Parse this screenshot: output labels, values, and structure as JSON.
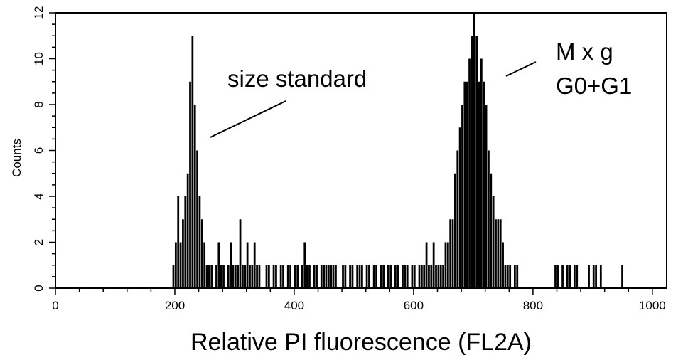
{
  "chart_data": {
    "type": "bar",
    "title": "",
    "xlabel": "Relative PI fluorescence (FL2A)",
    "ylabel": "Counts",
    "xlim": [
      0,
      1024
    ],
    "ylim": [
      0,
      12
    ],
    "grid": false,
    "x_ticks": [
      0,
      200,
      400,
      600,
      800,
      1000
    ],
    "y_ticks": [
      0,
      2,
      4,
      6,
      8,
      10,
      12
    ],
    "bar_color": "#000000",
    "bin_width": 4,
    "series": [
      {
        "x": [
          196,
          200,
          204,
          208,
          212,
          216,
          220,
          224,
          228,
          232,
          236,
          240,
          244,
          248,
          252,
          256,
          260,
          264,
          268,
          272,
          276,
          280,
          284,
          288,
          292,
          296,
          300,
          304,
          308,
          312,
          316,
          320,
          324,
          328,
          332,
          336,
          340,
          344,
          348,
          352,
          356,
          360,
          364,
          368,
          372,
          376,
          380,
          384,
          388,
          392,
          396,
          400,
          404,
          408,
          412,
          416,
          420,
          424,
          428,
          432,
          436,
          440,
          444,
          448,
          452,
          456,
          460,
          464,
          468,
          472,
          476,
          480,
          484,
          488,
          492,
          496,
          500,
          504,
          508,
          512,
          516,
          520,
          524,
          528,
          532,
          536,
          540,
          544,
          548,
          552,
          556,
          560,
          564,
          568,
          572,
          576,
          580,
          584,
          588,
          592,
          596,
          600,
          604,
          608,
          612,
          616,
          620,
          624,
          628,
          632,
          636,
          640,
          644,
          648,
          652,
          656,
          660,
          664,
          668,
          672,
          676,
          680,
          684,
          688,
          692,
          696,
          700,
          704,
          708,
          712,
          716,
          720,
          724,
          728,
          732,
          736,
          740,
          744,
          748,
          752,
          756,
          760,
          764,
          768,
          772,
          776,
          780,
          784,
          788,
          792,
          796,
          800,
          804,
          808,
          812,
          816,
          820,
          824,
          828,
          832,
          836,
          840,
          844,
          848,
          852,
          856,
          860,
          864,
          868,
          872,
          876,
          880,
          884,
          888,
          892,
          896,
          900,
          904,
          908,
          912,
          916,
          920,
          924,
          928,
          932,
          936,
          940,
          944,
          948,
          952,
          956,
          960
        ],
        "values": [
          1,
          2,
          4,
          2,
          3,
          4,
          5,
          9,
          11,
          8,
          6,
          4,
          3,
          2,
          1,
          1,
          1,
          0,
          1,
          2,
          1,
          1,
          0,
          1,
          2,
          1,
          1,
          1,
          3,
          1,
          1,
          2,
          1,
          1,
          2,
          1,
          1,
          0,
          0,
          1,
          1,
          0,
          1,
          1,
          0,
          1,
          1,
          0,
          1,
          1,
          0,
          1,
          1,
          0,
          1,
          2,
          1,
          1,
          0,
          1,
          1,
          0,
          1,
          1,
          1,
          1,
          1,
          1,
          1,
          0,
          0,
          1,
          1,
          0,
          1,
          1,
          0,
          1,
          1,
          1,
          0,
          1,
          1,
          0,
          1,
          1,
          0,
          1,
          1,
          0,
          1,
          1,
          0,
          1,
          1,
          0,
          1,
          1,
          1,
          0,
          1,
          1,
          0,
          1,
          1,
          1,
          2,
          1,
          1,
          2,
          1,
          1,
          1,
          1,
          2,
          2,
          3,
          3,
          5,
          6,
          7,
          8,
          9,
          9,
          10,
          11,
          12,
          11,
          9,
          10,
          9,
          8,
          6,
          5,
          4,
          3,
          3,
          3,
          2,
          1,
          1,
          1,
          0,
          1,
          1,
          0,
          0,
          0,
          0,
          0,
          0,
          0,
          0,
          0,
          0,
          0,
          0,
          0,
          0,
          0,
          1,
          1,
          0,
          1,
          0,
          1,
          1,
          0,
          1,
          1,
          0,
          0,
          0,
          0,
          1,
          0,
          1,
          1,
          0,
          1,
          0,
          0,
          0,
          0,
          0,
          0,
          0,
          0,
          1,
          0,
          0,
          0
        ]
      }
    ],
    "annotations": [
      {
        "text": "size standard",
        "points_to_x": 238
      },
      {
        "text": "M x g",
        "points_to_x": 722
      },
      {
        "text": "G0+G1",
        "points_to_x": 722
      }
    ]
  }
}
